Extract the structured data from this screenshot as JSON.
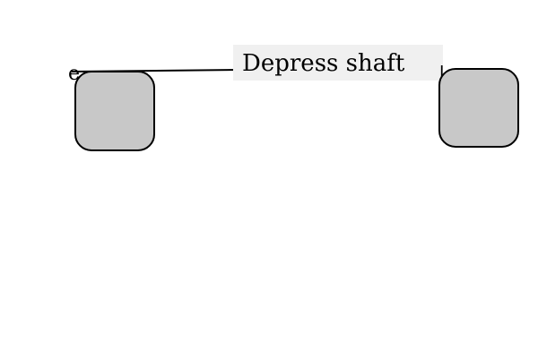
{
  "diagram": {
    "edge_label": "Depress shaft",
    "left_node_fragment": "e",
    "right_node_fragment": "|",
    "colors": {
      "node_fill": "#c8c8c8",
      "node_stroke": "#000000",
      "label_background": "#f0f0f0",
      "background": "#ffffff"
    }
  }
}
